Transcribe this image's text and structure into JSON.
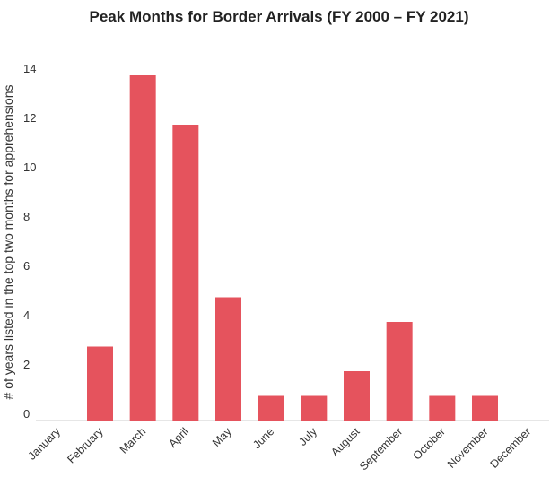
{
  "chart_data": {
    "type": "bar",
    "title": "Peak Months for Border Arrivals (FY 2000 – FY 2021)",
    "xlabel": "",
    "ylabel": "# of years listed in the top two months for apprehensions",
    "categories": [
      "January",
      "February",
      "March",
      "April",
      "May",
      "June",
      "July",
      "August",
      "September",
      "October",
      "November",
      "December"
    ],
    "values": [
      0,
      3,
      14,
      12,
      5,
      1,
      1,
      2,
      4,
      1,
      1,
      0
    ],
    "ylim": [
      0,
      14
    ],
    "yticks": [
      0,
      2,
      4,
      6,
      8,
      10,
      12,
      14
    ],
    "bar_color": "#e5535d",
    "grid": false,
    "legend": "none"
  }
}
